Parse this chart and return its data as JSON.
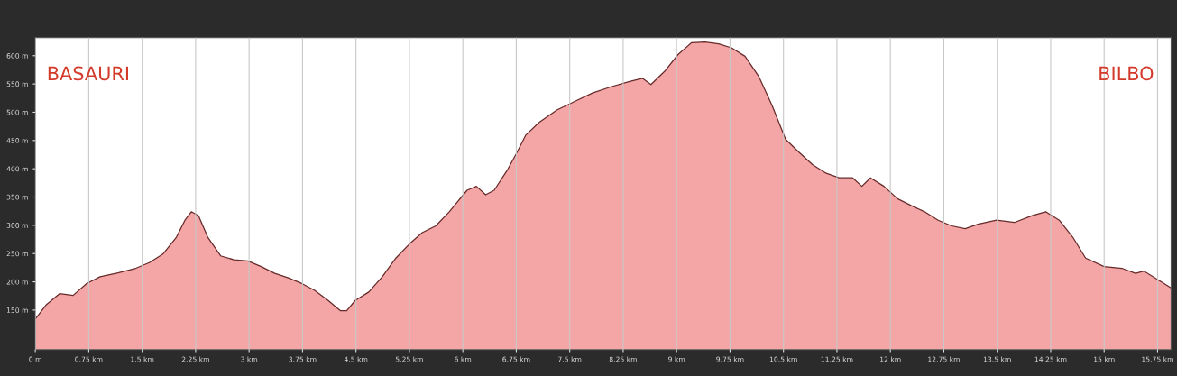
{
  "chart_data": {
    "type": "area",
    "xlabel": null,
    "x": [
      0,
      0.15,
      0.34,
      0.53,
      0.72,
      0.91,
      1.16,
      1.41,
      1.6,
      1.79,
      1.98,
      2.1,
      2.19,
      2.29,
      2.42,
      2.6,
      2.79,
      2.98,
      3.17,
      3.36,
      3.55,
      3.74,
      3.92,
      4.11,
      4.28,
      4.37,
      4.49,
      4.68,
      4.87,
      5.06,
      5.25,
      5.43,
      5.62,
      5.81,
      5.94,
      6.06,
      6.19,
      6.32,
      6.44,
      6.63,
      6.76,
      6.88,
      7.07,
      7.32,
      7.57,
      7.82,
      8.08,
      8.33,
      8.52,
      8.64,
      8.83,
      9.02,
      9.21,
      9.4,
      9.59,
      9.77,
      9.96,
      10.15,
      10.34,
      10.53,
      10.72,
      10.91,
      11.1,
      11.28,
      11.47,
      11.6,
      11.72,
      11.91,
      12.1,
      12.29,
      12.48,
      12.67,
      12.86,
      13.05,
      13.23,
      13.49,
      13.74,
      13.99,
      14.18,
      14.37,
      14.56,
      14.74,
      15.0,
      15.25,
      15.44,
      15.56,
      15.75,
      15.94
    ],
    "series": [
      {
        "color": "#f4a6a6",
        "values": [
          134,
          159,
          179,
          176,
          197,
          209,
          216,
          224,
          234,
          249,
          279,
          309,
          324,
          317,
          279,
          246,
          239,
          237,
          227,
          215,
          207,
          197,
          185,
          167,
          149,
          149,
          167,
          182,
          209,
          242,
          267,
          287,
          299,
          324,
          344,
          362,
          369,
          354,
          362,
          399,
          429,
          459,
          482,
          504,
          519,
          534,
          545,
          554,
          560,
          549,
          572,
          602,
          623,
          624,
          621,
          614,
          599,
          564,
          512,
          452,
          429,
          407,
          392,
          384,
          384,
          369,
          384,
          369,
          347,
          335,
          324,
          309,
          299,
          294,
          302,
          309,
          305,
          317,
          324,
          309,
          279,
          242,
          227,
          224,
          215,
          219,
          204,
          189
        ]
      }
    ],
    "xlim": [
      0,
      15.94
    ],
    "ylim": [
      80,
      632
    ],
    "xticks": [
      {
        "value": 0,
        "label": "0 m"
      },
      {
        "value": 0.75,
        "label": "0.75 km"
      },
      {
        "value": 1.5,
        "label": "1.5 km"
      },
      {
        "value": 2.25,
        "label": "2.25 km"
      },
      {
        "value": 3,
        "label": "3 km"
      },
      {
        "value": 3.75,
        "label": "3.75 km"
      },
      {
        "value": 4.5,
        "label": "4.5 km"
      },
      {
        "value": 5.25,
        "label": "5.25 km"
      },
      {
        "value": 6,
        "label": "6 km"
      },
      {
        "value": 6.75,
        "label": "6.75 km"
      },
      {
        "value": 7.5,
        "label": "7.5 km"
      },
      {
        "value": 8.25,
        "label": "8.25 km"
      },
      {
        "value": 9,
        "label": "9 km"
      },
      {
        "value": 9.75,
        "label": "9.75 km"
      },
      {
        "value": 10.5,
        "label": "10.5 km"
      },
      {
        "value": 11.25,
        "label": "11.25 km"
      },
      {
        "value": 12,
        "label": "12 km"
      },
      {
        "value": 12.75,
        "label": "12.75 km"
      },
      {
        "value": 13.5,
        "label": "13.5 km"
      },
      {
        "value": 14.25,
        "label": "14.25 km"
      },
      {
        "value": 15,
        "label": "15 km"
      },
      {
        "value": 15.75,
        "label": "15.75 km"
      }
    ],
    "yticks": [
      {
        "value": 150,
        "label": "150 m"
      },
      {
        "value": 200,
        "label": "200 m"
      },
      {
        "value": 250,
        "label": "250 m"
      },
      {
        "value": 300,
        "label": "300 m"
      },
      {
        "value": 350,
        "label": "350 m"
      },
      {
        "value": 400,
        "label": "400 m"
      },
      {
        "value": 450,
        "label": "450 m"
      },
      {
        "value": 500,
        "label": "500 m"
      },
      {
        "value": 550,
        "label": "550 m"
      },
      {
        "value": 600,
        "label": "600 m"
      }
    ],
    "grid": "x",
    "annotations": [
      "BASAURI",
      "BILBO"
    ]
  }
}
